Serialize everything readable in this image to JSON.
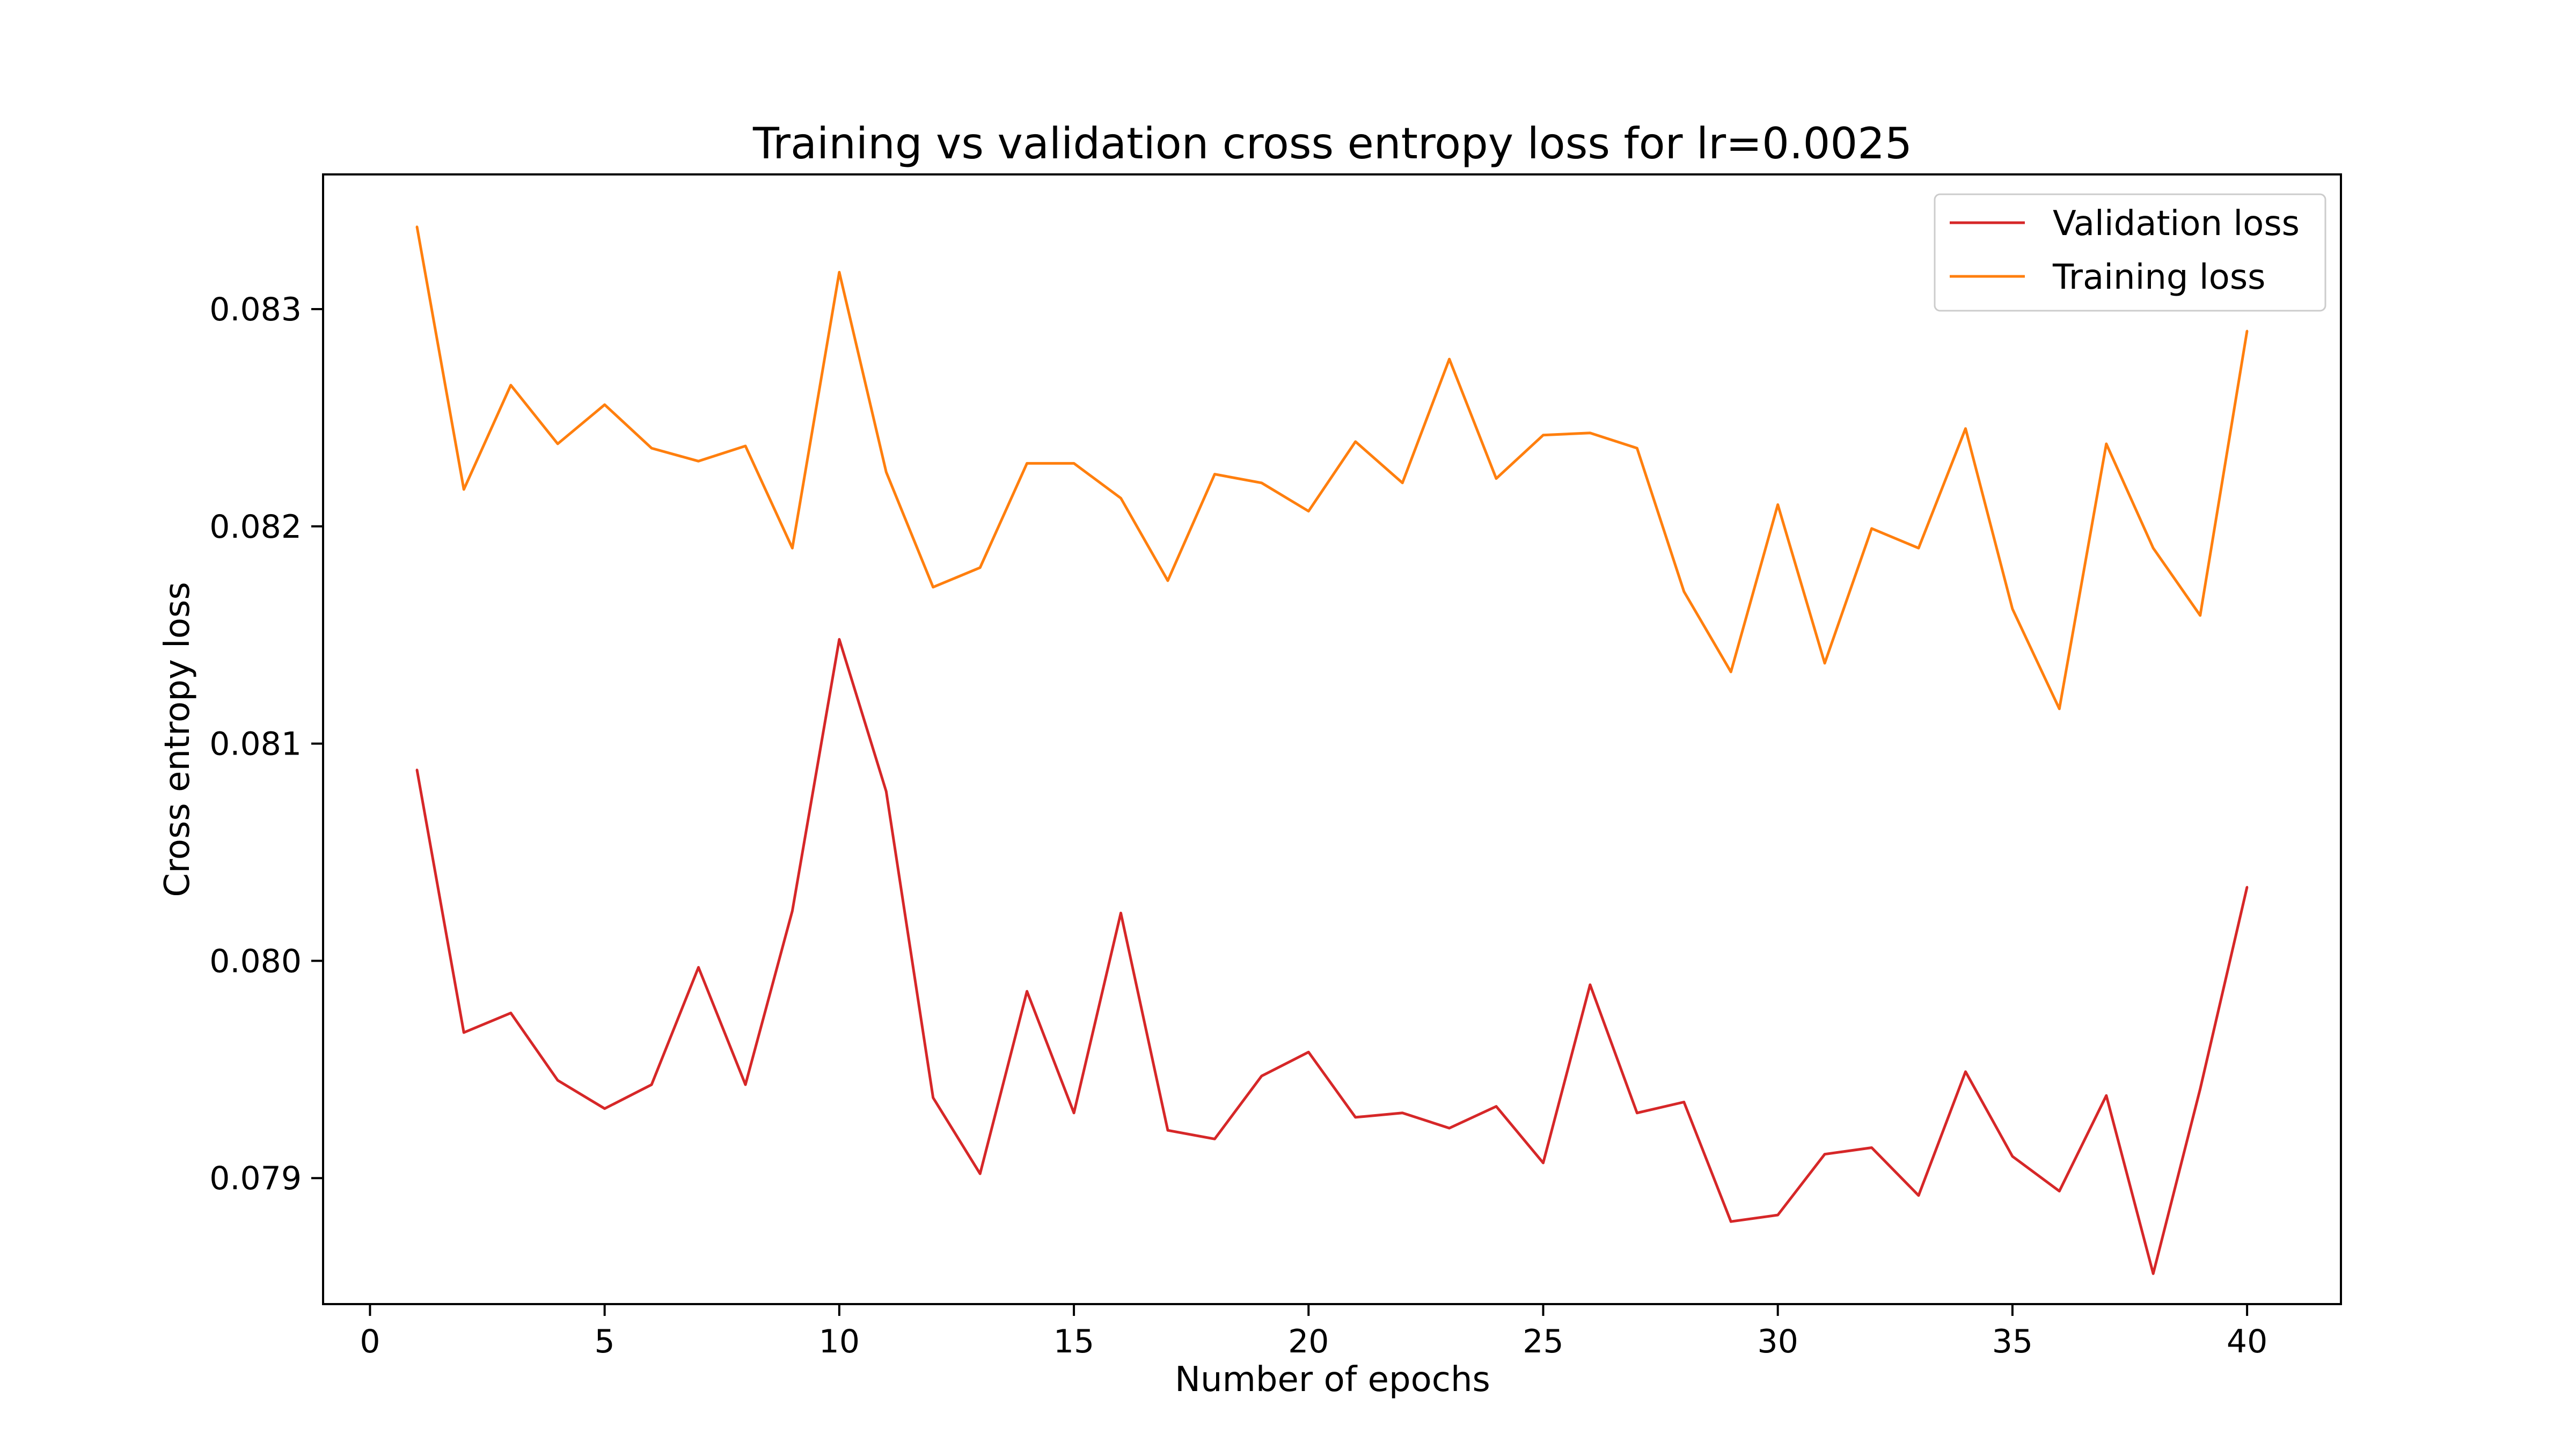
{
  "chart_data": {
    "type": "line",
    "title": "Training vs validation cross entropy loss for lr=0.0025",
    "xlabel": "Number of epochs",
    "ylabel": "Cross entropy loss",
    "xlim": [
      -1,
      42
    ],
    "ylim": [
      0.07842,
      0.08362
    ],
    "xticks": [
      0,
      5,
      10,
      15,
      20,
      25,
      30,
      35,
      40
    ],
    "xtick_labels": [
      "0",
      "5",
      "10",
      "15",
      "20",
      "25",
      "30",
      "35",
      "40"
    ],
    "yticks": [
      0.079,
      0.08,
      0.081,
      0.082,
      0.083
    ],
    "ytick_labels": [
      "0.079",
      "0.080",
      "0.081",
      "0.082",
      "0.083"
    ],
    "grid": false,
    "legend": "top-right",
    "x": [
      1,
      2,
      3,
      4,
      5,
      6,
      7,
      8,
      9,
      10,
      11,
      12,
      13,
      14,
      15,
      16,
      17,
      18,
      19,
      20,
      21,
      22,
      23,
      24,
      25,
      26,
      27,
      28,
      29,
      30,
      31,
      32,
      33,
      34,
      35,
      36,
      37,
      38,
      39,
      40
    ],
    "series": [
      {
        "name": "Validation loss",
        "color": "#d62728",
        "values": [
          0.08088,
          0.07967,
          0.07976,
          0.07945,
          0.07932,
          0.07943,
          0.07997,
          0.07943,
          0.08023,
          0.08148,
          0.08078,
          0.07937,
          0.07902,
          0.07986,
          0.0793,
          0.08022,
          0.07922,
          0.07918,
          0.07947,
          0.07958,
          0.07928,
          0.0793,
          0.07923,
          0.07933,
          0.07907,
          0.07989,
          0.0793,
          0.07935,
          0.0788,
          0.07883,
          0.07911,
          0.07914,
          0.07892,
          0.07949,
          0.0791,
          0.07894,
          0.07938,
          0.07856,
          0.07941,
          0.08034
        ]
      },
      {
        "name": "Training loss",
        "color": "#ff7f0e",
        "values": [
          0.08338,
          0.08217,
          0.08265,
          0.08238,
          0.08256,
          0.08236,
          0.0823,
          0.08237,
          0.0819,
          0.08317,
          0.08225,
          0.08172,
          0.08181,
          0.08229,
          0.08229,
          0.08213,
          0.08175,
          0.08224,
          0.0822,
          0.08207,
          0.08239,
          0.0822,
          0.08277,
          0.08222,
          0.08242,
          0.08243,
          0.08236,
          0.0817,
          0.08133,
          0.0821,
          0.08137,
          0.08199,
          0.0819,
          0.08245,
          0.08162,
          0.08116,
          0.08238,
          0.0819,
          0.08159,
          0.0829
        ]
      }
    ]
  }
}
